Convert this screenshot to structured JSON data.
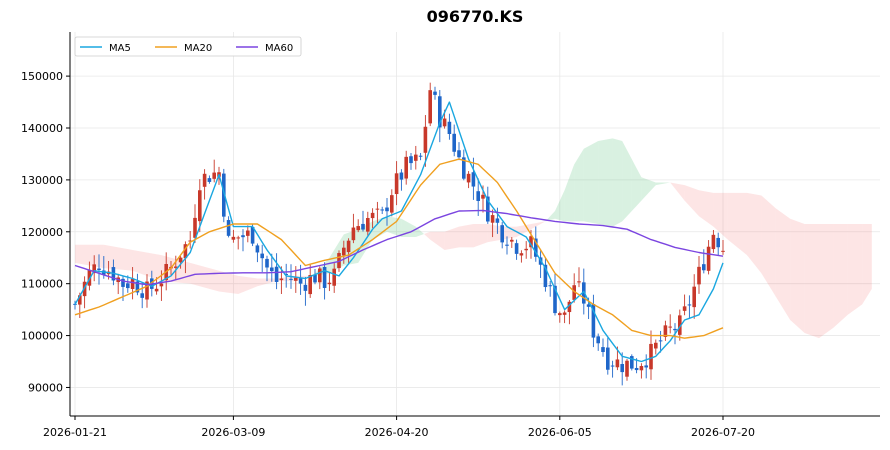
{
  "chart_data": {
    "type": "candlestick",
    "title": "096770.KS",
    "xlabel": "",
    "ylabel": "",
    "ylim": [
      84500,
      158500
    ],
    "yticks": [
      90000,
      100000,
      110000,
      120000,
      130000,
      140000,
      150000
    ],
    "ytick_labels": [
      "90000",
      "100000",
      "110000",
      "120000",
      "130000",
      "140000",
      "150000"
    ],
    "xticks": [
      {
        "index": 0,
        "label": "2026-01-21"
      },
      {
        "index": 33,
        "label": "2026-03-09"
      },
      {
        "index": 67,
        "label": "2026-04-20"
      },
      {
        "index": 101,
        "label": "2026-06-05"
      },
      {
        "index": 135,
        "label": "2026-07-20"
      }
    ],
    "n_sessions": 136,
    "n_future": 30,
    "grid": true,
    "legend_position": "top-left",
    "legend": [
      {
        "name": "MA5",
        "color": "#1aa7e0"
      },
      {
        "name": "MA20",
        "color": "#f0a020"
      },
      {
        "name": "MA60",
        "color": "#7b45e0"
      }
    ],
    "colors": {
      "up": "#c8382a",
      "down": "#1f66c9",
      "cloud_up": "#2fb35a",
      "cloud_down": "#f26d6d"
    },
    "ma_anchors": {
      "MA5": [
        [
          0,
          106000
        ],
        [
          4,
          112500
        ],
        [
          8,
          112000
        ],
        [
          12,
          111000
        ],
        [
          16,
          109500
        ],
        [
          20,
          111500
        ],
        [
          24,
          116000
        ],
        [
          28,
          126000
        ],
        [
          30,
          131000
        ],
        [
          33,
          121000
        ],
        [
          37,
          121000
        ],
        [
          40,
          116500
        ],
        [
          44,
          111500
        ],
        [
          48,
          111000
        ],
        [
          52,
          112500
        ],
        [
          55,
          111500
        ],
        [
          58,
          115000
        ],
        [
          62,
          120500
        ],
        [
          64,
          122500
        ],
        [
          68,
          124000
        ],
        [
          72,
          131000
        ],
        [
          76,
          141000
        ],
        [
          78,
          145000
        ],
        [
          82,
          134000
        ],
        [
          86,
          126000
        ],
        [
          90,
          121000
        ],
        [
          94,
          119000
        ],
        [
          98,
          113000
        ],
        [
          100,
          109000
        ],
        [
          102,
          105000
        ],
        [
          106,
          108500
        ],
        [
          110,
          101000
        ],
        [
          114,
          96000
        ],
        [
          118,
          95000
        ],
        [
          121,
          96000
        ],
        [
          124,
          99000
        ],
        [
          127,
          103000
        ],
        [
          130,
          104000
        ],
        [
          133,
          109000
        ],
        [
          135,
          114000
        ]
      ],
      "MA20": [
        [
          0,
          104000
        ],
        [
          5,
          105500
        ],
        [
          10,
          107500
        ],
        [
          15,
          109500
        ],
        [
          20,
          113000
        ],
        [
          24,
          118000
        ],
        [
          28,
          120000
        ],
        [
          33,
          121500
        ],
        [
          38,
          121500
        ],
        [
          43,
          118500
        ],
        [
          48,
          113500
        ],
        [
          52,
          114500
        ],
        [
          57,
          115500
        ],
        [
          62,
          118500
        ],
        [
          67,
          122000
        ],
        [
          72,
          129000
        ],
        [
          76,
          133000
        ],
        [
          80,
          134000
        ],
        [
          84,
          133000
        ],
        [
          88,
          129500
        ],
        [
          92,
          124000
        ],
        [
          96,
          118000
        ],
        [
          100,
          112000
        ],
        [
          104,
          108500
        ],
        [
          108,
          106000
        ],
        [
          112,
          104000
        ],
        [
          116,
          101000
        ],
        [
          120,
          100000
        ],
        [
          124,
          100000
        ],
        [
          127,
          99500
        ],
        [
          131,
          100000
        ],
        [
          135,
          101500
        ]
      ],
      "MA60": [
        [
          0,
          113500
        ],
        [
          5,
          112000
        ],
        [
          10,
          110500
        ],
        [
          15,
          109800
        ],
        [
          20,
          110500
        ],
        [
          25,
          111800
        ],
        [
          30,
          112000
        ],
        [
          35,
          112100
        ],
        [
          40,
          112100
        ],
        [
          45,
          112300
        ],
        [
          50,
          113300
        ],
        [
          55,
          114300
        ],
        [
          60,
          116500
        ],
        [
          65,
          118500
        ],
        [
          70,
          120000
        ],
        [
          75,
          122500
        ],
        [
          80,
          124000
        ],
        [
          85,
          124100
        ],
        [
          90,
          123500
        ],
        [
          95,
          122700
        ],
        [
          100,
          122000
        ],
        [
          105,
          121500
        ],
        [
          110,
          121200
        ],
        [
          115,
          120500
        ],
        [
          120,
          118500
        ],
        [
          125,
          117000
        ],
        [
          130,
          116000
        ],
        [
          135,
          115300
        ]
      ]
    },
    "candle_anchors": [
      [
        0,
        106000
      ],
      [
        3,
        112000
      ],
      [
        5,
        114000
      ],
      [
        8,
        112000
      ],
      [
        10,
        110000
      ],
      [
        12,
        110500
      ],
      [
        15,
        108500
      ],
      [
        17,
        110000
      ],
      [
        20,
        113000
      ],
      [
        22,
        116000
      ],
      [
        24,
        118500
      ],
      [
        26,
        130000
      ],
      [
        28,
        131000
      ],
      [
        30,
        131500
      ],
      [
        32,
        118000
      ],
      [
        34,
        119000
      ],
      [
        37,
        119500
      ],
      [
        40,
        113000
      ],
      [
        42,
        110500
      ],
      [
        44,
        111500
      ],
      [
        47,
        110000
      ],
      [
        50,
        111500
      ],
      [
        52,
        110500
      ],
      [
        54,
        111500
      ],
      [
        56,
        117000
      ],
      [
        58,
        121000
      ],
      [
        61,
        122500
      ],
      [
        64,
        123000
      ],
      [
        66,
        128000
      ],
      [
        69,
        132500
      ],
      [
        72,
        134000
      ],
      [
        74,
        147500
      ],
      [
        76,
        142000
      ],
      [
        78,
        139000
      ],
      [
        80,
        134000
      ],
      [
        83,
        129000
      ],
      [
        86,
        124000
      ],
      [
        89,
        120000
      ],
      [
        92,
        117500
      ],
      [
        95,
        117500
      ],
      [
        98,
        111000
      ],
      [
        100,
        106000
      ],
      [
        102,
        103500
      ],
      [
        104,
        110000
      ],
      [
        106,
        107000
      ],
      [
        108,
        101000
      ],
      [
        111,
        95500
      ],
      [
        114,
        94500
      ],
      [
        117,
        94500
      ],
      [
        120,
        96500
      ],
      [
        122,
        99000
      ],
      [
        124,
        101000
      ],
      [
        126,
        102000
      ],
      [
        128,
        106500
      ],
      [
        131,
        114500
      ],
      [
        133,
        120000
      ],
      [
        135,
        117000
      ]
    ],
    "cloud_anchors": [
      [
        0,
        117500,
        114000
      ],
      [
        6,
        117500,
        113000
      ],
      [
        12,
        116500,
        112500
      ],
      [
        18,
        115500,
        110500
      ],
      [
        24,
        114000,
        110000
      ],
      [
        30,
        112500,
        108500
      ],
      [
        34,
        111500,
        108000
      ],
      [
        38,
        111000,
        109500
      ],
      [
        42,
        111000,
        110500
      ],
      [
        46,
        111500,
        110500
      ],
      [
        50,
        111500,
        112000
      ],
      [
        53,
        112000,
        115000
      ],
      [
        56,
        113500,
        119500
      ],
      [
        59,
        114000,
        120500
      ],
      [
        62,
        118500,
        122000
      ],
      [
        65,
        120000,
        123000
      ],
      [
        68,
        119000,
        122500
      ],
      [
        71,
        119000,
        121000
      ],
      [
        74,
        120000,
        118500
      ],
      [
        77,
        120000,
        116500
      ],
      [
        80,
        121000,
        117000
      ],
      [
        83,
        121500,
        117000
      ],
      [
        86,
        121500,
        118000
      ],
      [
        89,
        121000,
        118500
      ],
      [
        92,
        121000,
        119000
      ],
      [
        95,
        121500,
        120500
      ],
      [
        98,
        122000,
        122000
      ],
      [
        100,
        122500,
        124000
      ],
      [
        102,
        122000,
        128000
      ],
      [
        104,
        122000,
        133000
      ],
      [
        106,
        122000,
        136000
      ],
      [
        109,
        121500,
        137500
      ],
      [
        112,
        121000,
        138000
      ],
      [
        114,
        122000,
        137500
      ],
      [
        116,
        124000,
        134000
      ],
      [
        118,
        126000,
        130500
      ],
      [
        121,
        129000,
        129500
      ],
      [
        124,
        129500,
        129500
      ],
      [
        127,
        129000,
        126000
      ],
      [
        130,
        128000,
        123000
      ],
      [
        133,
        127500,
        121000
      ],
      [
        136,
        127500,
        118500
      ],
      [
        140,
        127500,
        115500
      ],
      [
        143,
        127000,
        112000
      ],
      [
        146,
        124500,
        107500
      ],
      [
        149,
        122500,
        103000
      ],
      [
        152,
        121500,
        100500
      ],
      [
        155,
        121500,
        99500
      ],
      [
        158,
        121500,
        101500
      ],
      [
        161,
        121500,
        104000
      ],
      [
        164,
        121500,
        106000
      ],
      [
        166,
        121500,
        109000
      ]
    ]
  }
}
